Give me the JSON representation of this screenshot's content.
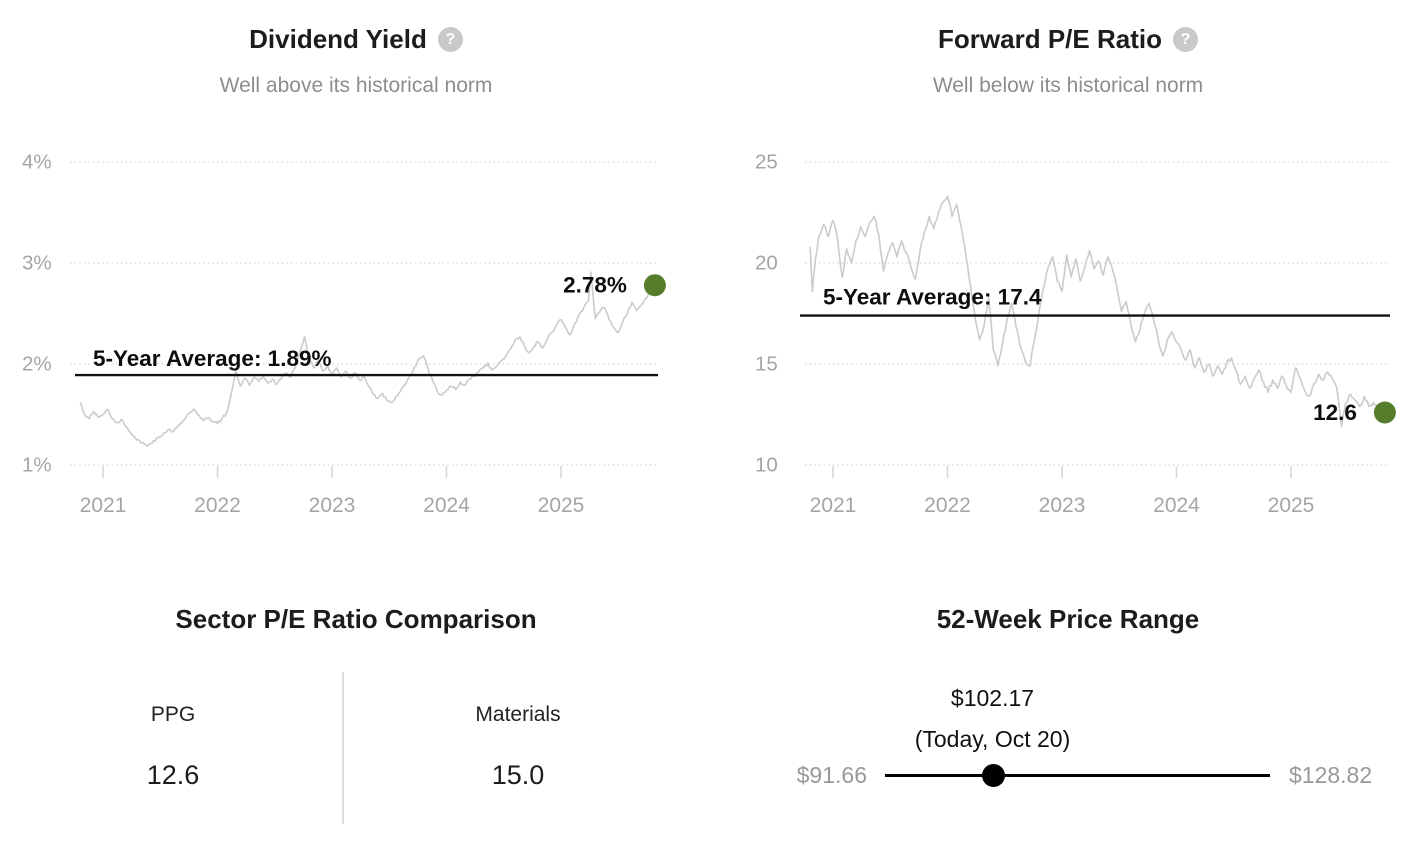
{
  "page": {
    "background": "#ffffff"
  },
  "help_icon_glyph": "?",
  "colors": {
    "title": "#1c1c1c",
    "subtitle": "#8d8d8d",
    "axis_label": "#a5a5a5",
    "gridline": "#dddddd",
    "tick_mark": "#d8d8d8",
    "series_line": "#cbcbcb",
    "average_line": "#111111",
    "annotation": "#0d0d0d",
    "marker_green": "#567d2b",
    "range_gray": "#999999",
    "slider_black": "#000000",
    "divider": "#dddddd"
  },
  "chart_data": [
    {
      "type": "line",
      "title": "Dividend Yield",
      "subtitle": "Well above its historical norm",
      "help_icon": "help-icon",
      "ylim": [
        1,
        4
      ],
      "xlim": [
        2020.8,
        2025.82
      ],
      "grid": "dotted-horizontal",
      "legend": "none",
      "y_ticks": [
        {
          "label": "4%",
          "value": 4
        },
        {
          "label": "3%",
          "value": 3
        },
        {
          "label": "2%",
          "value": 2
        },
        {
          "label": "1%",
          "value": 1
        }
      ],
      "x_ticks": [
        2021,
        2022,
        2023,
        2024,
        2025
      ],
      "average_label": "5-Year Average: 1.89%",
      "average_value": 1.89,
      "current_label": "2.78%",
      "current_value": 2.78,
      "points": [
        [
          2020.8,
          1.62
        ],
        [
          2020.84,
          1.5
        ],
        [
          2020.88,
          1.46
        ],
        [
          2020.92,
          1.53
        ],
        [
          2020.96,
          1.47
        ],
        [
          2021.0,
          1.5
        ],
        [
          2021.04,
          1.55
        ],
        [
          2021.08,
          1.46
        ],
        [
          2021.12,
          1.42
        ],
        [
          2021.16,
          1.45
        ],
        [
          2021.2,
          1.38
        ],
        [
          2021.24,
          1.32
        ],
        [
          2021.28,
          1.27
        ],
        [
          2021.32,
          1.24
        ],
        [
          2021.36,
          1.21
        ],
        [
          2021.4,
          1.2
        ],
        [
          2021.44,
          1.24
        ],
        [
          2021.48,
          1.27
        ],
        [
          2021.52,
          1.3
        ],
        [
          2021.56,
          1.34
        ],
        [
          2021.6,
          1.33
        ],
        [
          2021.64,
          1.37
        ],
        [
          2021.68,
          1.41
        ],
        [
          2021.72,
          1.46
        ],
        [
          2021.76,
          1.52
        ],
        [
          2021.8,
          1.55
        ],
        [
          2021.84,
          1.49
        ],
        [
          2021.88,
          1.44
        ],
        [
          2021.92,
          1.47
        ],
        [
          2021.96,
          1.43
        ],
        [
          2022.0,
          1.41
        ],
        [
          2022.04,
          1.46
        ],
        [
          2022.08,
          1.52
        ],
        [
          2022.12,
          1.7
        ],
        [
          2022.16,
          1.94
        ],
        [
          2022.2,
          1.78
        ],
        [
          2022.24,
          1.86
        ],
        [
          2022.28,
          1.79
        ],
        [
          2022.32,
          1.87
        ],
        [
          2022.36,
          1.83
        ],
        [
          2022.4,
          1.88
        ],
        [
          2022.44,
          1.81
        ],
        [
          2022.48,
          1.85
        ],
        [
          2022.52,
          1.8
        ],
        [
          2022.56,
          1.86
        ],
        [
          2022.6,
          1.91
        ],
        [
          2022.64,
          1.87
        ],
        [
          2022.68,
          1.97
        ],
        [
          2022.72,
          2.12
        ],
        [
          2022.76,
          2.27
        ],
        [
          2022.8,
          2.05
        ],
        [
          2022.84,
          1.96
        ],
        [
          2022.88,
          2.03
        ],
        [
          2022.92,
          1.93
        ],
        [
          2022.96,
          1.99
        ],
        [
          2023.0,
          1.89
        ],
        [
          2023.04,
          1.96
        ],
        [
          2023.08,
          1.87
        ],
        [
          2023.12,
          1.93
        ],
        [
          2023.16,
          1.86
        ],
        [
          2023.2,
          1.91
        ],
        [
          2023.24,
          1.84
        ],
        [
          2023.28,
          1.88
        ],
        [
          2023.32,
          1.78
        ],
        [
          2023.36,
          1.7
        ],
        [
          2023.4,
          1.66
        ],
        [
          2023.44,
          1.71
        ],
        [
          2023.48,
          1.64
        ],
        [
          2023.52,
          1.62
        ],
        [
          2023.56,
          1.68
        ],
        [
          2023.6,
          1.73
        ],
        [
          2023.64,
          1.8
        ],
        [
          2023.68,
          1.88
        ],
        [
          2023.72,
          1.97
        ],
        [
          2023.76,
          2.05
        ],
        [
          2023.8,
          2.08
        ],
        [
          2023.84,
          1.95
        ],
        [
          2023.88,
          1.83
        ],
        [
          2023.92,
          1.73
        ],
        [
          2023.96,
          1.69
        ],
        [
          2024.0,
          1.74
        ],
        [
          2024.04,
          1.78
        ],
        [
          2024.08,
          1.75
        ],
        [
          2024.12,
          1.82
        ],
        [
          2024.16,
          1.79
        ],
        [
          2024.2,
          1.85
        ],
        [
          2024.24,
          1.88
        ],
        [
          2024.28,
          1.92
        ],
        [
          2024.32,
          1.96
        ],
        [
          2024.36,
          2.01
        ],
        [
          2024.4,
          1.94
        ],
        [
          2024.44,
          1.98
        ],
        [
          2024.48,
          2.03
        ],
        [
          2024.52,
          2.08
        ],
        [
          2024.56,
          2.15
        ],
        [
          2024.6,
          2.24
        ],
        [
          2024.64,
          2.27
        ],
        [
          2024.68,
          2.18
        ],
        [
          2024.72,
          2.11
        ],
        [
          2024.76,
          2.17
        ],
        [
          2024.8,
          2.22
        ],
        [
          2024.84,
          2.16
        ],
        [
          2024.88,
          2.25
        ],
        [
          2024.92,
          2.31
        ],
        [
          2024.96,
          2.38
        ],
        [
          2025.0,
          2.44
        ],
        [
          2025.04,
          2.36
        ],
        [
          2025.08,
          2.29
        ],
        [
          2025.12,
          2.4
        ],
        [
          2025.16,
          2.49
        ],
        [
          2025.2,
          2.56
        ],
        [
          2025.24,
          2.63
        ],
        [
          2025.26,
          2.91
        ],
        [
          2025.3,
          2.45
        ],
        [
          2025.34,
          2.52
        ],
        [
          2025.38,
          2.56
        ],
        [
          2025.42,
          2.44
        ],
        [
          2025.46,
          2.36
        ],
        [
          2025.5,
          2.31
        ],
        [
          2025.54,
          2.42
        ],
        [
          2025.58,
          2.5
        ],
        [
          2025.62,
          2.61
        ],
        [
          2025.66,
          2.53
        ],
        [
          2025.7,
          2.58
        ],
        [
          2025.74,
          2.65
        ],
        [
          2025.78,
          2.72
        ],
        [
          2025.82,
          2.78
        ]
      ]
    },
    {
      "type": "line",
      "title": "Forward P/E Ratio",
      "subtitle": "Well below its historical norm",
      "help_icon": "help-icon",
      "ylim": [
        10,
        25
      ],
      "xlim": [
        2020.8,
        2025.82
      ],
      "grid": "dotted-horizontal",
      "legend": "none",
      "y_ticks": [
        {
          "label": "25",
          "value": 25
        },
        {
          "label": "20",
          "value": 20
        },
        {
          "label": "15",
          "value": 15
        },
        {
          "label": "10",
          "value": 10
        }
      ],
      "x_ticks": [
        2021,
        2022,
        2023,
        2024,
        2025
      ],
      "average_label": "5-Year Average: 17.4",
      "average_value": 17.4,
      "current_label": "12.6",
      "current_value": 12.6,
      "points": [
        [
          2020.8,
          20.8
        ],
        [
          2020.82,
          18.6
        ],
        [
          2020.85,
          20.3
        ],
        [
          2020.88,
          21.4
        ],
        [
          2020.92,
          21.9
        ],
        [
          2020.96,
          21.3
        ],
        [
          2021.0,
          22.1
        ],
        [
          2021.04,
          21.2
        ],
        [
          2021.08,
          19.3
        ],
        [
          2021.12,
          20.7
        ],
        [
          2021.16,
          20.0
        ],
        [
          2021.2,
          21.1
        ],
        [
          2021.24,
          21.8
        ],
        [
          2021.28,
          21.3
        ],
        [
          2021.32,
          22.0
        ],
        [
          2021.36,
          22.3
        ],
        [
          2021.4,
          21.4
        ],
        [
          2021.44,
          19.6
        ],
        [
          2021.48,
          20.5
        ],
        [
          2021.52,
          21.0
        ],
        [
          2021.56,
          20.3
        ],
        [
          2021.6,
          21.1
        ],
        [
          2021.64,
          20.5
        ],
        [
          2021.68,
          19.8
        ],
        [
          2021.72,
          19.2
        ],
        [
          2021.76,
          20.6
        ],
        [
          2021.8,
          21.6
        ],
        [
          2021.84,
          22.3
        ],
        [
          2021.88,
          21.7
        ],
        [
          2021.92,
          22.5
        ],
        [
          2021.96,
          23.0
        ],
        [
          2022.0,
          23.3
        ],
        [
          2022.04,
          22.3
        ],
        [
          2022.08,
          22.9
        ],
        [
          2022.12,
          21.8
        ],
        [
          2022.16,
          20.4
        ],
        [
          2022.2,
          18.9
        ],
        [
          2022.24,
          17.3
        ],
        [
          2022.28,
          16.2
        ],
        [
          2022.32,
          16.9
        ],
        [
          2022.36,
          18.3
        ],
        [
          2022.4,
          15.7
        ],
        [
          2022.44,
          14.9
        ],
        [
          2022.48,
          16.0
        ],
        [
          2022.52,
          17.2
        ],
        [
          2022.56,
          18.0
        ],
        [
          2022.6,
          16.8
        ],
        [
          2022.64,
          15.8
        ],
        [
          2022.68,
          15.1
        ],
        [
          2022.72,
          14.9
        ],
        [
          2022.76,
          16.2
        ],
        [
          2022.8,
          17.6
        ],
        [
          2022.84,
          18.8
        ],
        [
          2022.88,
          19.8
        ],
        [
          2022.92,
          20.3
        ],
        [
          2022.96,
          19.1
        ],
        [
          2023.0,
          18.6
        ],
        [
          2023.04,
          20.4
        ],
        [
          2023.08,
          19.3
        ],
        [
          2023.12,
          20.2
        ],
        [
          2023.16,
          19.1
        ],
        [
          2023.2,
          19.8
        ],
        [
          2023.24,
          20.6
        ],
        [
          2023.28,
          19.7
        ],
        [
          2023.32,
          20.1
        ],
        [
          2023.36,
          19.4
        ],
        [
          2023.4,
          20.3
        ],
        [
          2023.44,
          19.7
        ],
        [
          2023.48,
          18.8
        ],
        [
          2023.52,
          17.6
        ],
        [
          2023.56,
          18.1
        ],
        [
          2023.6,
          17.0
        ],
        [
          2023.64,
          16.1
        ],
        [
          2023.68,
          16.7
        ],
        [
          2023.72,
          17.5
        ],
        [
          2023.76,
          18.0
        ],
        [
          2023.8,
          17.2
        ],
        [
          2023.84,
          16.2
        ],
        [
          2023.88,
          15.4
        ],
        [
          2023.92,
          16.2
        ],
        [
          2023.96,
          16.6
        ],
        [
          2024.0,
          16.1
        ],
        [
          2024.04,
          15.7
        ],
        [
          2024.08,
          15.2
        ],
        [
          2024.12,
          15.7
        ],
        [
          2024.16,
          14.8
        ],
        [
          2024.2,
          15.3
        ],
        [
          2024.24,
          14.6
        ],
        [
          2024.28,
          15.0
        ],
        [
          2024.32,
          14.4
        ],
        [
          2024.36,
          14.9
        ],
        [
          2024.4,
          14.5
        ],
        [
          2024.44,
          15.1
        ],
        [
          2024.48,
          15.3
        ],
        [
          2024.52,
          14.7
        ],
        [
          2024.56,
          14.0
        ],
        [
          2024.6,
          14.4
        ],
        [
          2024.64,
          13.8
        ],
        [
          2024.68,
          14.3
        ],
        [
          2024.72,
          14.7
        ],
        [
          2024.76,
          14.1
        ],
        [
          2024.8,
          13.6
        ],
        [
          2024.84,
          14.2
        ],
        [
          2024.88,
          13.8
        ],
        [
          2024.92,
          14.4
        ],
        [
          2024.96,
          13.9
        ],
        [
          2025.0,
          13.6
        ],
        [
          2025.04,
          14.8
        ],
        [
          2025.08,
          14.3
        ],
        [
          2025.12,
          13.7
        ],
        [
          2025.16,
          13.4
        ],
        [
          2025.2,
          14.0
        ],
        [
          2025.24,
          14.5
        ],
        [
          2025.28,
          14.2
        ],
        [
          2025.32,
          14.6
        ],
        [
          2025.36,
          14.3
        ],
        [
          2025.4,
          13.8
        ],
        [
          2025.44,
          11.9
        ],
        [
          2025.48,
          13.1
        ],
        [
          2025.52,
          13.5
        ],
        [
          2025.56,
          13.2
        ],
        [
          2025.6,
          12.9
        ],
        [
          2025.64,
          13.4
        ],
        [
          2025.68,
          12.9
        ],
        [
          2025.72,
          13.1
        ],
        [
          2025.76,
          12.8
        ],
        [
          2025.82,
          12.6
        ]
      ]
    },
    {
      "type": "table",
      "title": "Sector P/E Ratio Comparison",
      "items": [
        {
          "label": "PPG",
          "value": "12.6"
        },
        {
          "label": "Materials",
          "value": "15.0"
        }
      ]
    },
    {
      "type": "range",
      "title": "52-Week Price Range",
      "current_label": "$102.17",
      "current_sub_label": "(Today, Oct 20)",
      "current_value": 102.17,
      "low_label": "$91.66",
      "low_value": 91.66,
      "high_label": "$128.82",
      "high_value": 128.82
    }
  ]
}
